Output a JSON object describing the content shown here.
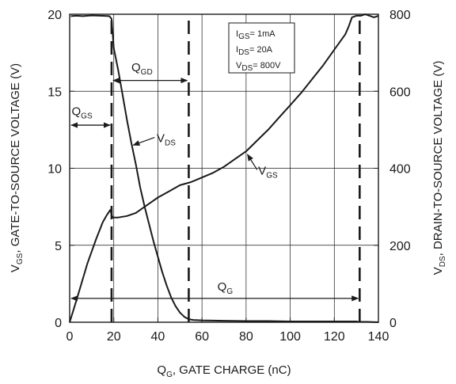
{
  "chart_data": {
    "type": "line",
    "xlabel": {
      "main": "Q",
      "sub": "G",
      "rest": ", GATE CHARGE (nC)"
    },
    "ylabel": {
      "main": "V",
      "sub": "GS",
      "rest": ", GATE-TO-SOURCE  VOLTAGE (V)"
    },
    "y2label": {
      "main": "V",
      "sub": "DS",
      "rest": ", DRAIN-TO-SOURCE  VOLTAGE (V)"
    },
    "xlim": [
      0,
      140
    ],
    "ylim": [
      0,
      20
    ],
    "y2lim": [
      0,
      800
    ],
    "xticks": [
      "0",
      "20",
      "40",
      "60",
      "80",
      "100",
      "120",
      "140"
    ],
    "yticks": [
      "0",
      "5",
      "10",
      "15",
      "20"
    ],
    "y2ticks": [
      "0",
      "200",
      "400",
      "600",
      "800"
    ],
    "grid": true,
    "conditions": [
      {
        "main": "I",
        "sub": "GS",
        "rest": "= 1mA"
      },
      {
        "main": "I",
        "sub": "DS",
        "rest": "= 20A"
      },
      {
        "main": "V",
        "sub": "DS",
        "rest": "= 800V"
      }
    ],
    "series": [
      {
        "name": "VGS",
        "axis": "left",
        "x": [
          0,
          3,
          8,
          12,
          15,
          17,
          18.5,
          19,
          19.5,
          22,
          26,
          30,
          35,
          40,
          45,
          50,
          55,
          60,
          65,
          70,
          75,
          80,
          85,
          90,
          95,
          100,
          105,
          110,
          115,
          120,
          125,
          126.5,
          128,
          130,
          132,
          134,
          136,
          138,
          140
        ],
        "y": [
          0,
          1.4,
          3.8,
          5.4,
          6.5,
          7.0,
          7.3,
          7.0,
          6.8,
          6.8,
          6.9,
          7.1,
          7.6,
          8.1,
          8.5,
          8.9,
          9.1,
          9.4,
          9.7,
          10.1,
          10.6,
          11.1,
          11.8,
          12.5,
          13.3,
          14.1,
          14.9,
          15.8,
          16.7,
          17.7,
          18.7,
          19.2,
          19.8,
          19.9,
          19.9,
          20.0,
          19.9,
          19.8,
          19.9
        ]
      },
      {
        "name": "VDS",
        "axis": "right",
        "x": [
          0.5,
          3,
          6,
          10,
          14,
          18,
          19,
          20,
          22,
          24,
          26,
          28,
          30,
          32,
          34,
          36,
          38,
          40,
          42,
          44,
          46,
          48,
          50,
          52,
          54,
          56,
          60,
          70,
          80,
          90,
          100,
          110,
          120,
          130,
          131,
          135,
          140
        ],
        "y": [
          795,
          796,
          795,
          797,
          796,
          795,
          788,
          712,
          655,
          590,
          525,
          465,
          410,
          350,
          300,
          255,
          210,
          170,
          130,
          95,
          65,
          42,
          25,
          14,
          8,
          6,
          5,
          4,
          3,
          3,
          2,
          2,
          2,
          2,
          1,
          1,
          0
        ]
      }
    ],
    "markers": [
      {
        "x": 19,
        "style": "dashed"
      },
      {
        "x": 54,
        "style": "dashed"
      },
      {
        "x": 131.5,
        "style": "dashed"
      }
    ],
    "annotations": [
      {
        "main": "Q",
        "sub": "GD",
        "rest": "",
        "x_from": 19,
        "x_to": 54,
        "y": 15.7
      },
      {
        "main": "Q",
        "sub": "GS",
        "rest": "",
        "x_from": 0,
        "x_to": 19,
        "y": 12.8
      },
      {
        "main": "Q",
        "sub": "G",
        "rest": "",
        "x_from": 0,
        "x_to": 131.5,
        "y": 1.55
      },
      {
        "main": "V",
        "sub": "DS",
        "rest": "",
        "series": "VDS"
      },
      {
        "main": "V",
        "sub": "GS",
        "rest": "",
        "series": "VGS"
      }
    ]
  }
}
